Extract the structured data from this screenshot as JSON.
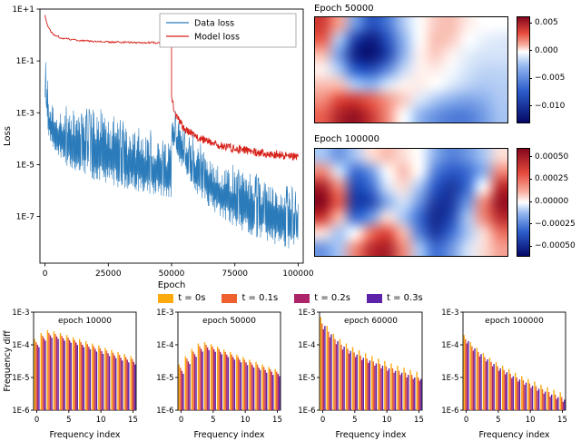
{
  "chart_data": [
    {
      "type": "line",
      "title": "",
      "xlabel": "Epoch",
      "ylabel": "Loss",
      "xlim": [
        -2000,
        102000
      ],
      "ylim_exp": [
        -8.8,
        1
      ],
      "x_ticks": [
        {
          "v": 0,
          "label": "0"
        },
        {
          "v": 25000,
          "label": "25000"
        },
        {
          "v": 50000,
          "label": "50000"
        },
        {
          "v": 75000,
          "label": "75000"
        },
        {
          "v": 100000,
          "label": "100000"
        }
      ],
      "y_ticks": [
        {
          "exp": 1,
          "label": "1E+1"
        },
        {
          "exp": -1,
          "label": "1E-1"
        },
        {
          "exp": -3,
          "label": "1E-3"
        },
        {
          "exp": -5,
          "label": "1E-5"
        },
        {
          "exp": -7,
          "label": "1E-7"
        }
      ],
      "legend": [
        {
          "label": "Data loss",
          "color": "#2b7bba"
        },
        {
          "label": "Model loss",
          "color": "#d62018"
        }
      ],
      "data_loss": {
        "name": "Data loss",
        "color": "#2b7bba",
        "intro": [
          [
            0,
            -2.4
          ],
          [
            250,
            -1.05
          ],
          [
            450,
            -2.6
          ]
        ],
        "phases": [
          {
            "x0": 600,
            "x1": 50000,
            "step": 150,
            "top": [
              [
                600,
                -1.2
              ],
              [
                1500,
                -2.5
              ],
              [
                4000,
                -2.9
              ],
              [
                12000,
                -3.0
              ],
              [
                25000,
                -3.2
              ],
              [
                40000,
                -3.9
              ],
              [
                50000,
                -4.3
              ]
            ],
            "bottom": [
              [
                600,
                -3.2
              ],
              [
                1500,
                -4.0
              ],
              [
                4000,
                -4.7
              ],
              [
                12000,
                -5.3
              ],
              [
                25000,
                -5.8
              ],
              [
                40000,
                -6.1
              ],
              [
                50000,
                -6.3
              ]
            ]
          },
          {
            "x0": 50050,
            "x1": 100000,
            "step": 150,
            "top": [
              [
                50050,
                -2.95
              ],
              [
                52000,
                -3.3
              ],
              [
                56000,
                -3.9
              ],
              [
                62000,
                -4.5
              ],
              [
                70000,
                -5.0
              ],
              [
                80000,
                -5.5
              ],
              [
                100000,
                -6.2
              ]
            ],
            "bottom": [
              [
                50050,
                -4.1
              ],
              [
                52000,
                -4.8
              ],
              [
                56000,
                -5.6
              ],
              [
                62000,
                -6.4
              ],
              [
                70000,
                -7.1
              ],
              [
                80000,
                -7.7
              ],
              [
                100000,
                -8.4
              ]
            ]
          }
        ]
      },
      "model_loss": {
        "name": "Model loss",
        "color": "#d62018",
        "segments": [
          {
            "x0": 0,
            "x1": 50000,
            "step": 250,
            "noise": 0.035,
            "anchor": [
              [
                0,
                0.78
              ],
              [
                400,
                0.55
              ],
              [
                1200,
                0.3
              ],
              [
                3000,
                0.05
              ],
              [
                6000,
                -0.1
              ],
              [
                12000,
                -0.2
              ],
              [
                25000,
                -0.27
              ],
              [
                50000,
                -0.31
              ]
            ]
          },
          {
            "x0": 50000,
            "x1": 100000,
            "step": 150,
            "noise": 0.16,
            "anchor": [
              [
                50000,
                -2.5
              ],
              [
                52000,
                -3.15
              ],
              [
                55000,
                -3.6
              ],
              [
                60000,
                -3.95
              ],
              [
                70000,
                -4.3
              ],
              [
                85000,
                -4.55
              ],
              [
                100000,
                -4.7
              ]
            ]
          }
        ]
      }
    },
    {
      "type": "heatmap",
      "title": "Epoch 50000",
      "vmin": -0.0128,
      "vmax": 0.0062,
      "grid_scale": 0.001,
      "colorbar_ticks": [
        0.005,
        0.0,
        -0.005,
        -0.01
      ],
      "colorbar_labels": [
        "0.005",
        "0.000",
        "−0.005",
        "−0.010"
      ],
      "grid": [
        [
          4,
          1.5,
          -4,
          -8,
          -6,
          -2,
          0,
          0.8,
          1,
          0.3,
          0,
          0
        ],
        [
          3,
          -2,
          -9,
          -11.5,
          -8,
          -3,
          0,
          1,
          0.8,
          0,
          -0.5,
          -0.8
        ],
        [
          1,
          -4,
          -11,
          -12.3,
          -9,
          -3,
          0.2,
          0.8,
          0.2,
          -0.6,
          -1,
          -1
        ],
        [
          0.2,
          -2,
          -7,
          -8,
          -5,
          -1.5,
          0.2,
          0.3,
          -0.2,
          -1,
          -1.5,
          -1.5
        ],
        [
          1,
          1,
          -2,
          -3,
          -1,
          0.2,
          0.3,
          0,
          -0.8,
          -1.6,
          -2,
          -1.8
        ],
        [
          2,
          3.6,
          4,
          3,
          1.8,
          0.8,
          -0.8,
          -2,
          -3,
          -3.6,
          -3,
          -2
        ],
        [
          3,
          5,
          5.8,
          4.2,
          2,
          0,
          -2.6,
          -4.5,
          -5.5,
          -5.5,
          -4,
          -2.2
        ]
      ]
    },
    {
      "type": "heatmap",
      "title": "Epoch 100000",
      "vmin": -0.0006,
      "vmax": 0.0006,
      "grid_scale": 0.0001,
      "colorbar_ticks": [
        0.0005,
        0.00025,
        0.0,
        -0.00025,
        -0.0005
      ],
      "colorbar_labels": [
        "0.00050",
        "0.00025",
        "0.00000",
        "−0.00025",
        "−0.00050"
      ],
      "grid": [
        [
          -1,
          -2,
          -1,
          0.5,
          1,
          0.5,
          0,
          -1.5,
          -2.5,
          -2,
          -1,
          0.5
        ],
        [
          2,
          -0.5,
          -3,
          -2,
          0,
          1,
          0,
          -2.5,
          -3.5,
          -3,
          -1.5,
          2
        ],
        [
          5,
          2,
          -4,
          -3,
          -0.5,
          0.5,
          -1,
          -3.5,
          -4.5,
          -3,
          0,
          4.5
        ],
        [
          6,
          3,
          -4.5,
          -4,
          -1.5,
          -0.5,
          -2,
          -4.5,
          -4.5,
          -2,
          2,
          5.5
        ],
        [
          4,
          1,
          -3,
          -2,
          0.5,
          -1,
          -3,
          -5,
          -4,
          -1,
          2,
          4.5
        ],
        [
          0.5,
          -1,
          0,
          2.5,
          3.5,
          1,
          -2.5,
          -4.5,
          -3,
          -1,
          0.5,
          2.5
        ],
        [
          -2,
          -1,
          2,
          4.5,
          5,
          2,
          -1,
          -3,
          -2,
          -0.5,
          0.5,
          1.5
        ]
      ]
    },
    {
      "type": "bar",
      "title": "epoch 10000",
      "x": [
        0,
        1,
        2,
        3,
        4,
        5,
        6,
        7,
        8,
        9,
        10,
        11,
        12,
        13,
        14,
        15
      ],
      "values_scale": 1e-06,
      "series": [
        [
          150,
          230,
          280,
          260,
          230,
          200,
          170,
          150,
          130,
          110,
          95,
          80,
          70,
          60,
          52,
          45
        ],
        [
          120,
          190,
          230,
          215,
          190,
          165,
          140,
          120,
          105,
          90,
          78,
          66,
          57,
          49,
          42,
          37
        ],
        [
          100,
          160,
          195,
          180,
          160,
          138,
          118,
          100,
          87,
          75,
          64,
          55,
          47,
          40,
          35,
          30
        ],
        [
          85,
          135,
          165,
          152,
          134,
          116,
          99,
          85,
          73,
          62,
          53,
          45,
          39,
          33,
          29,
          25
        ]
      ]
    },
    {
      "type": "bar",
      "title": "epoch 50000",
      "x": [
        0,
        1,
        2,
        3,
        4,
        5,
        6,
        7,
        8,
        9,
        10,
        11,
        12,
        13,
        14,
        15
      ],
      "values_scale": 1e-06,
      "series": [
        [
          25,
          45,
          75,
          110,
          120,
          105,
          88,
          72,
          60,
          50,
          42,
          35,
          30,
          25,
          21,
          18
        ],
        [
          20,
          38,
          62,
          90,
          100,
          88,
          74,
          60,
          50,
          42,
          35,
          29,
          25,
          21,
          18,
          15
        ],
        [
          16,
          31,
          52,
          75,
          83,
          73,
          61,
          50,
          42,
          35,
          29,
          24,
          20,
          17,
          15,
          13
        ],
        [
          13,
          26,
          43,
          62,
          69,
          61,
          51,
          42,
          35,
          29,
          24,
          20,
          17,
          14,
          12,
          11
        ]
      ]
    },
    {
      "type": "bar",
      "title": "epoch 60000",
      "x": [
        0,
        1,
        2,
        3,
        4,
        5,
        6,
        7,
        8,
        9,
        10,
        11,
        12,
        13,
        14,
        15
      ],
      "values_scale": 1e-06,
      "series": [
        [
          700,
          380,
          220,
          150,
          110,
          85,
          68,
          55,
          45,
          38,
          32,
          27,
          23,
          20,
          17,
          15
        ],
        [
          450,
          250,
          150,
          100,
          75,
          58,
          47,
          38,
          31,
          26,
          22,
          19,
          16,
          14,
          12,
          10
        ],
        [
          300,
          170,
          105,
          72,
          54,
          42,
          34,
          28,
          23,
          19,
          16,
          14,
          12,
          10,
          9,
          8
        ],
        [
          380,
          210,
          130,
          88,
          65,
          50,
          40,
          33,
          27,
          23,
          19,
          16,
          14,
          12,
          10,
          9
        ]
      ]
    },
    {
      "type": "bar",
      "title": "epoch 100000",
      "x": [
        0,
        1,
        2,
        3,
        4,
        5,
        6,
        7,
        8,
        9,
        10,
        11,
        12,
        13,
        14,
        15
      ],
      "values_scale": 1e-06,
      "series": [
        [
          200,
          120,
          80,
          56,
          40,
          30,
          23,
          18,
          14,
          11,
          9,
          7.5,
          6,
          5,
          4.2,
          3.5
        ],
        [
          150,
          90,
          60,
          42,
          30,
          22,
          17,
          13,
          10,
          8.2,
          6.6,
          5.4,
          4.4,
          3.6,
          3,
          2.5
        ],
        [
          110,
          66,
          44,
          31,
          22,
          16,
          12.5,
          9.6,
          7.5,
          6,
          4.8,
          3.9,
          3.2,
          2.6,
          2.2,
          1.8
        ],
        [
          130,
          78,
          52,
          36,
          26,
          19,
          14.5,
          11,
          8.7,
          7,
          5.6,
          4.5,
          3.7,
          3,
          2.5,
          2.1
        ]
      ]
    }
  ],
  "bar_common": {
    "ylabel": "Frequency diff",
    "xlabel": "Frequency index",
    "ylim_exp": [
      -6,
      -3
    ],
    "y_ticks": [
      {
        "exp": -3,
        "label": "1E-3"
      },
      {
        "exp": -4,
        "label": "1E-4"
      },
      {
        "exp": -5,
        "label": "1E-5"
      },
      {
        "exp": -6,
        "label": "1E-6"
      }
    ],
    "x_ticks": [
      0,
      5,
      10,
      15
    ],
    "legend": [
      {
        "label": "t = 0s",
        "color": "#fcaa0e"
      },
      {
        "label": "t = 0.1s",
        "color": "#ee612e"
      },
      {
        "label": "t = 0.2s",
        "color": "#ab2568"
      },
      {
        "label": "t = 0.3s",
        "color": "#5c22a8"
      }
    ]
  }
}
